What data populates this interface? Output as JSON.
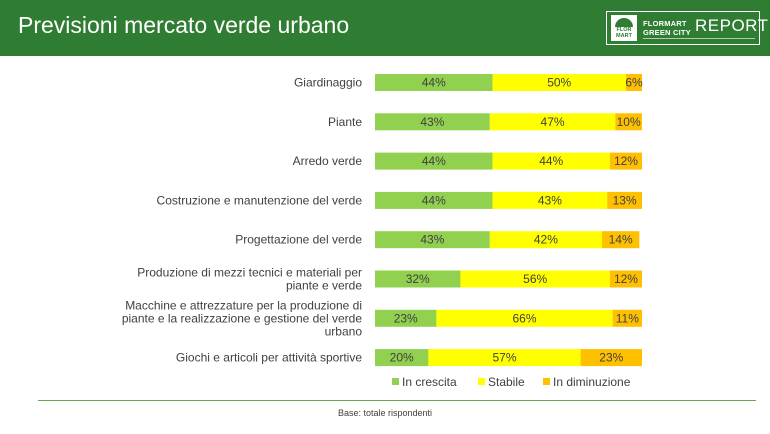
{
  "header": {
    "title": "Previsioni mercato verde urbano",
    "logo": {
      "mark_line1": "FLOR",
      "mark_line2": "MART",
      "brand_line1": "FLORMART",
      "brand_line2": "GREEN CITY",
      "report": "REPORT"
    },
    "background_color": "#2f7d32"
  },
  "chart_data": {
    "type": "bar",
    "orientation": "horizontal",
    "stacked": "percent",
    "categories": [
      "Giardinaggio",
      "Piante",
      "Arredo verde",
      "Costruzione e manutenzione del verde",
      "Progettazione del verde",
      "Produzione di mezzi tecnici e materiali per piante e verde",
      "Macchine e attrezzature per la produzione di piante e la realizzazione e gestione del verde urbano",
      "Giochi e articoli per attività sportive"
    ],
    "category_label_lines": [
      [
        "Giardinaggio"
      ],
      [
        "Piante"
      ],
      [
        "Arredo verde"
      ],
      [
        "Costruzione e manutenzione del verde"
      ],
      [
        "Progettazione del verde"
      ],
      [
        "Produzione di mezzi tecnici e materiali per",
        "piante e verde"
      ],
      [
        "Macchine e attrezzature per la produzione di",
        "piante e la realizzazione e gestione del verde",
        "urbano"
      ],
      [
        "Giochi e articoli per attività sportive"
      ]
    ],
    "series": [
      {
        "name": "In crescita",
        "color": "#92d050",
        "values": [
          44,
          43,
          44,
          44,
          43,
          32,
          23,
          20
        ],
        "labels": [
          "44%",
          "43%",
          "44%",
          "44%",
          "43%",
          "32%",
          "23%",
          "20%"
        ]
      },
      {
        "name": "Stabile",
        "color": "#ffff00",
        "values": [
          50,
          47,
          44,
          43,
          42,
          56,
          66,
          57
        ],
        "labels": [
          "50%",
          "47%",
          "44%",
          "43%",
          "42%",
          "56%",
          "66%",
          "57%"
        ]
      },
      {
        "name": "In diminuzione",
        "color": "#ffc000",
        "values": [
          6,
          10,
          12,
          13,
          14,
          12,
          11,
          23
        ],
        "labels": [
          "6%",
          "10%",
          "12%",
          "13%",
          "14%",
          "12%",
          "11%",
          "23%"
        ]
      }
    ],
    "xlim": [
      0,
      100
    ],
    "grid": false,
    "legend_position": "bottom"
  },
  "footnote": "Base: totale rispondenti"
}
